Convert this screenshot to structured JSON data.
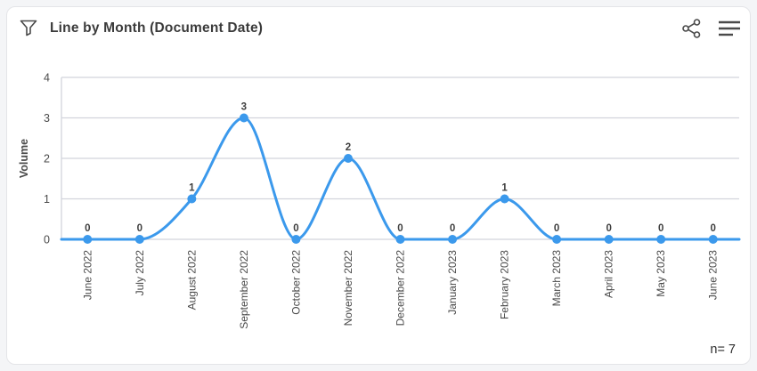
{
  "header": {
    "title": "Line by Month (Document Date)",
    "icons": [
      "filter-funnel-icon",
      "share-icon",
      "hamburger-menu-icon"
    ]
  },
  "footer": {
    "n_label": "n= 7"
  },
  "colors": {
    "line": "#3B99EC",
    "marker": "#3B99EC",
    "grid": "#d2d4dc",
    "axis_text": "#4a4a4a",
    "value_label": "#3f3f3f",
    "title_text": "#3b3b3b",
    "card_background": "#ffffff",
    "page_background": "#f4f5f7",
    "card_border": "#e4e5e8"
  },
  "chart_data": {
    "type": "line",
    "title": "Line by Month (Document Date)",
    "xlabel": "",
    "ylabel": "Volume",
    "categories": [
      "June 2022",
      "July 2022",
      "August 2022",
      "September 2022",
      "October 2022",
      "November 2022",
      "December 2022",
      "January 2023",
      "February 2023",
      "March 2023",
      "April 2023",
      "May 2023",
      "June 2023"
    ],
    "values": [
      0,
      0,
      1,
      3,
      0,
      2,
      0,
      0,
      1,
      0,
      0,
      0,
      0
    ],
    "ylim": [
      0,
      4
    ],
    "yticks": [
      0,
      1,
      2,
      3,
      4
    ],
    "grid": true,
    "legend": false,
    "smooth": true,
    "point_labels": [
      0,
      0,
      1,
      3,
      0,
      2,
      0,
      0,
      1,
      0,
      0,
      0,
      0
    ],
    "n": 7
  }
}
